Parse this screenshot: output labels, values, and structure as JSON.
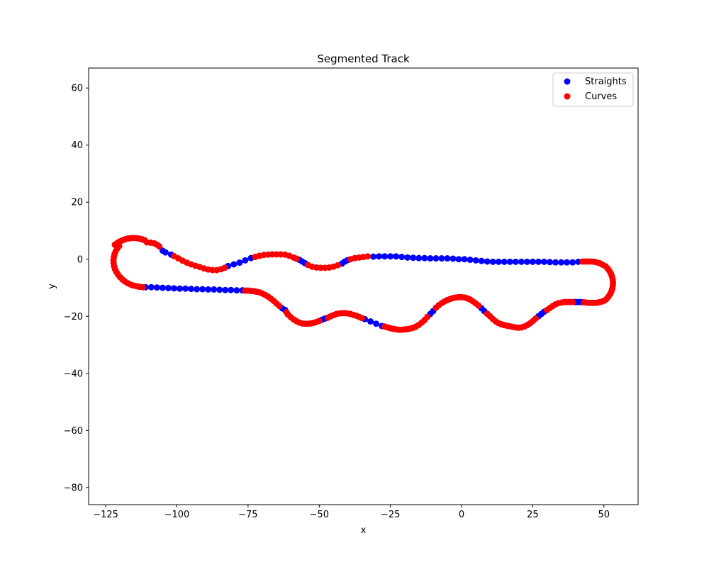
{
  "chart_data": {
    "type": "scatter",
    "title": "Segmented Track",
    "xlabel": "x",
    "ylabel": "y",
    "xlim": [
      -131,
      62
    ],
    "ylim": [
      -86,
      67
    ],
    "xticks": [
      -125,
      -100,
      -75,
      -50,
      -25,
      0,
      25,
      50
    ],
    "yticks": [
      -80,
      -60,
      -40,
      -20,
      0,
      20,
      40,
      60
    ],
    "xtick_labels": [
      "−125",
      "−100",
      "−75",
      "−50",
      "−25",
      "0",
      "25",
      "50"
    ],
    "ytick_labels": [
      "−80",
      "−60",
      "−40",
      "−20",
      "0",
      "20",
      "40",
      "60"
    ],
    "grid": false,
    "legend_position": "top-right",
    "series": [
      {
        "name": "Straights",
        "color": "#0000ff",
        "points": [
          [
            -105,
            3
          ],
          [
            -104,
            2.4
          ],
          [
            -102,
            1.6
          ],
          [
            -82,
            -2.4
          ],
          [
            -80,
            -1.8
          ],
          [
            -78,
            -1.2
          ],
          [
            -76,
            -0.4
          ],
          [
            -74,
            0.4
          ],
          [
            -57,
            -0.2
          ],
          [
            -56,
            -0.8
          ],
          [
            -55,
            -1.4
          ],
          [
            -42,
            -1.5
          ],
          [
            -41,
            -0.8
          ],
          [
            -40,
            -0.3
          ],
          [
            -31,
            0.9
          ],
          [
            -29,
            1
          ],
          [
            -27,
            1
          ],
          [
            -25,
            1
          ],
          [
            -23,
            1
          ],
          [
            -21,
            0.8
          ],
          [
            -19,
            0.6
          ],
          [
            -17,
            0.5
          ],
          [
            -15,
            0.4
          ],
          [
            -13,
            0.4
          ],
          [
            -11,
            0.3
          ],
          [
            -9,
            0.3
          ],
          [
            -7,
            0.3
          ],
          [
            -5,
            0.3
          ],
          [
            -3,
            0.2
          ],
          [
            -1,
            0
          ],
          [
            1,
            0
          ],
          [
            3,
            -0.2
          ],
          [
            5,
            -0.4
          ],
          [
            7,
            -0.6
          ],
          [
            9,
            -0.8
          ],
          [
            11,
            -0.9
          ],
          [
            13,
            -0.9
          ],
          [
            15,
            -0.9
          ],
          [
            17,
            -0.9
          ],
          [
            19,
            -0.9
          ],
          [
            21,
            -0.9
          ],
          [
            23,
            -0.9
          ],
          [
            25,
            -0.9
          ],
          [
            27,
            -0.9
          ],
          [
            29,
            -0.9
          ],
          [
            31,
            -1
          ],
          [
            33,
            -1.1
          ],
          [
            35,
            -1.1
          ],
          [
            37,
            -1.1
          ],
          [
            39,
            -1.1
          ],
          [
            41,
            -0.9
          ],
          [
            40,
            -15
          ],
          [
            41,
            -15
          ],
          [
            42,
            -15
          ],
          [
            -111,
            -9.8
          ],
          [
            -109,
            -9.8
          ],
          [
            -107,
            -9.9
          ],
          [
            -105,
            -10
          ],
          [
            -103,
            -10.1
          ],
          [
            -101,
            -10.2
          ],
          [
            -99,
            -10.3
          ],
          [
            -97,
            -10.3
          ],
          [
            -95,
            -10.4
          ],
          [
            -93,
            -10.5
          ],
          [
            -91,
            -10.5
          ],
          [
            -89,
            -10.6
          ],
          [
            -87,
            -10.6
          ],
          [
            -85,
            -10.7
          ],
          [
            -83,
            -10.8
          ],
          [
            -81,
            -10.8
          ],
          [
            -79,
            -10.9
          ],
          [
            -77,
            -10.9
          ],
          [
            -63,
            -17.2
          ],
          [
            -62,
            -17.8
          ],
          [
            -49,
            -21.2
          ],
          [
            -48,
            -20.8
          ],
          [
            -34,
            -21
          ],
          [
            -32,
            -21.8
          ],
          [
            -30,
            -22.6
          ],
          [
            -28,
            -23.4
          ],
          [
            -11,
            -19.2
          ],
          [
            -10,
            -18.2
          ],
          [
            7,
            -17.2
          ],
          [
            8,
            -18.2
          ],
          [
            27,
            -20
          ],
          [
            28,
            -19.2
          ],
          [
            29,
            -18.4
          ]
        ]
      },
      {
        "name": "Curves",
        "color": "#ff0000",
        "points": [
          [
            -121.78,
            5.07
          ],
          [
            -121.08,
            5.58
          ],
          [
            -120.35,
            6.04
          ],
          [
            -119.6,
            6.44
          ],
          [
            -118.81,
            6.78
          ],
          [
            -118,
            7.05
          ],
          [
            -117.17,
            7.26
          ],
          [
            -116.33,
            7.39
          ],
          [
            -115.48,
            7.45
          ],
          [
            -114.63,
            7.43
          ],
          [
            -113.78,
            7.34
          ],
          [
            -112.94,
            7.18
          ],
          [
            -112.12,
            6.95
          ],
          [
            -111.32,
            6.65
          ],
          [
            -110.5,
            5.9
          ],
          [
            -109.2,
            5.8
          ],
          [
            -108,
            5.6
          ],
          [
            -107,
            5.1
          ],
          [
            -106.2,
            4.5
          ],
          [
            -101,
            1.1
          ],
          [
            -99.5,
            0.3
          ],
          [
            -98,
            -0.5
          ],
          [
            -96.5,
            -1.2
          ],
          [
            -95,
            -1.8
          ],
          [
            -93.5,
            -2.3
          ],
          [
            -92,
            -2.7
          ],
          [
            -90.5,
            -3.2
          ],
          [
            -89,
            -3.6
          ],
          [
            -87.5,
            -3.8
          ],
          [
            -86,
            -3.8
          ],
          [
            -84.5,
            -3.5
          ],
          [
            -83.2,
            -3
          ],
          [
            -72.5,
            0.8
          ],
          [
            -71,
            1.2
          ],
          [
            -69.5,
            1.5
          ],
          [
            -68,
            1.6
          ],
          [
            -66.5,
            1.7
          ],
          [
            -65,
            1.7
          ],
          [
            -63.5,
            1.7
          ],
          [
            -62,
            1.6
          ],
          [
            -60.5,
            1.2
          ],
          [
            -59,
            0.6
          ],
          [
            -58,
            0.2
          ],
          [
            -54,
            -2
          ],
          [
            -52.5,
            -2.6
          ],
          [
            -51,
            -2.9
          ],
          [
            -49.5,
            -3
          ],
          [
            -48,
            -3
          ],
          [
            -46.5,
            -2.9
          ],
          [
            -45,
            -2.6
          ],
          [
            -43.5,
            -2.1
          ],
          [
            -39,
            0
          ],
          [
            -37.5,
            0.4
          ],
          [
            -36,
            0.6
          ],
          [
            -34.5,
            0.8
          ],
          [
            -33,
            1
          ],
          [
            42.5,
            -0.8
          ],
          [
            43.5,
            -0.8
          ],
          [
            44.5,
            -0.8
          ],
          [
            45.5,
            -0.8
          ],
          [
            46.5,
            -0.9
          ],
          [
            47.5,
            -1.1
          ],
          [
            48.5,
            -1.4
          ],
          [
            49.5,
            -1.9
          ],
          [
            50.62,
            -2.52
          ],
          [
            51.34,
            -3.3
          ],
          [
            51.96,
            -4.16
          ],
          [
            52.47,
            -5.1
          ],
          [
            52.84,
            -6.09
          ],
          [
            53.08,
            -7.13
          ],
          [
            53.18,
            -8.18
          ],
          [
            53.13,
            -9.24
          ],
          [
            52.94,
            -10.28
          ],
          [
            52.62,
            -11.29
          ],
          [
            52.16,
            -12.25
          ],
          [
            51.58,
            -13.13
          ],
          [
            50.89,
            -13.93
          ],
          [
            50.2,
            -14.5
          ],
          [
            49.4,
            -14.8
          ],
          [
            48.6,
            -15
          ],
          [
            47.8,
            -15.2
          ],
          [
            47,
            -15.3
          ],
          [
            46,
            -15.3
          ],
          [
            45,
            -15.3
          ],
          [
            44,
            -15.2
          ],
          [
            43,
            -15.1
          ],
          [
            39,
            -15
          ],
          [
            38,
            -15
          ],
          [
            37,
            -15
          ],
          [
            36,
            -15
          ],
          [
            35,
            -15.2
          ],
          [
            34,
            -15.4
          ],
          [
            33,
            -15.8
          ],
          [
            32,
            -16.4
          ],
          [
            31,
            -17.1
          ],
          [
            30,
            -17.8
          ],
          [
            26,
            -20.8
          ],
          [
            25,
            -21.7
          ],
          [
            24,
            -22.5
          ],
          [
            23,
            -23.1
          ],
          [
            22,
            -23.6
          ],
          [
            21,
            -23.9
          ],
          [
            20,
            -24
          ],
          [
            19,
            -23.9
          ],
          [
            18,
            -23.7
          ],
          [
            17,
            -23.5
          ],
          [
            16,
            -23.3
          ],
          [
            15,
            -23.1
          ],
          [
            14,
            -22.8
          ],
          [
            13,
            -22.4
          ],
          [
            12,
            -21.8
          ],
          [
            11,
            -21
          ],
          [
            10,
            -20
          ],
          [
            9,
            -19.1
          ],
          [
            6,
            -16.3
          ],
          [
            5,
            -15.5
          ],
          [
            4,
            -14.8
          ],
          [
            3,
            -14.1
          ],
          [
            2,
            -13.7
          ],
          [
            1,
            -13.4
          ],
          [
            0,
            -13.3
          ],
          [
            -1,
            -13.3
          ],
          [
            -2,
            -13.4
          ],
          [
            -3,
            -13.6
          ],
          [
            -4,
            -13.9
          ],
          [
            -5,
            -14.3
          ],
          [
            -6,
            -14.8
          ],
          [
            -7,
            -15.4
          ],
          [
            -8,
            -16.1
          ],
          [
            -9,
            -17
          ],
          [
            -12,
            -20.2
          ],
          [
            -13,
            -21.3
          ],
          [
            -14,
            -22.2
          ],
          [
            -15,
            -23
          ],
          [
            -16,
            -23.6
          ],
          [
            -17,
            -24
          ],
          [
            -18,
            -24.3
          ],
          [
            -19,
            -24.5
          ],
          [
            -20,
            -24.6
          ],
          [
            -21,
            -24.7
          ],
          [
            -22,
            -24.7
          ],
          [
            -23,
            -24.6
          ],
          [
            -24,
            -24.4
          ],
          [
            -25,
            -24.2
          ],
          [
            -26,
            -23.9
          ],
          [
            -27,
            -23.6
          ],
          [
            -35,
            -20.6
          ],
          [
            -36,
            -20.2
          ],
          [
            -37,
            -19.8
          ],
          [
            -38,
            -19.5
          ],
          [
            -39,
            -19.2
          ],
          [
            -40,
            -19
          ],
          [
            -41,
            -18.9
          ],
          [
            -42,
            -18.9
          ],
          [
            -43,
            -19
          ],
          [
            -44,
            -19.2
          ],
          [
            -45,
            -19.6
          ],
          [
            -46,
            -20
          ],
          [
            -47,
            -20.5
          ],
          [
            -50,
            -21.6
          ],
          [
            -51,
            -22
          ],
          [
            -52,
            -22.3
          ],
          [
            -53,
            -22.5
          ],
          [
            -54,
            -22.6
          ],
          [
            -55,
            -22.6
          ],
          [
            -56,
            -22.5
          ],
          [
            -57,
            -22.2
          ],
          [
            -58,
            -21.7
          ],
          [
            -59,
            -21.1
          ],
          [
            -60,
            -20.3
          ],
          [
            -61,
            -19.4
          ],
          [
            -61.5,
            -18.6
          ],
          [
            -64,
            -16.4
          ],
          [
            -65,
            -15.5
          ],
          [
            -66,
            -14.6
          ],
          [
            -67,
            -13.8
          ],
          [
            -68,
            -13.1
          ],
          [
            -69,
            -12.5
          ],
          [
            -70,
            -12
          ],
          [
            -71,
            -11.6
          ],
          [
            -72,
            -11.4
          ],
          [
            -73,
            -11.2
          ],
          [
            -74,
            -11.1
          ],
          [
            -75,
            -11
          ],
          [
            -76,
            -11
          ],
          [
            -112,
            -9.8
          ],
          [
            -113.1,
            -9.66
          ],
          [
            -114.2,
            -9.47
          ],
          [
            -115.28,
            -9.21
          ],
          [
            -116.32,
            -8.85
          ],
          [
            -117.32,
            -8.37
          ],
          [
            -118.26,
            -7.79
          ],
          [
            -119.14,
            -7.09
          ],
          [
            -119.94,
            -6.3
          ],
          [
            -120.65,
            -5.43
          ],
          [
            -121.25,
            -4.49
          ],
          [
            -121.72,
            -3.5
          ],
          [
            -122.05,
            -2.46
          ],
          [
            -122.24,
            -1.38
          ],
          [
            -122.27,
            -0.3
          ],
          [
            -122.15,
            0.78
          ],
          [
            -121.88,
            1.84
          ],
          [
            -121.47,
            2.85
          ],
          [
            -120.93,
            3.79
          ],
          [
            -120.28,
            4.65
          ]
        ]
      }
    ]
  }
}
